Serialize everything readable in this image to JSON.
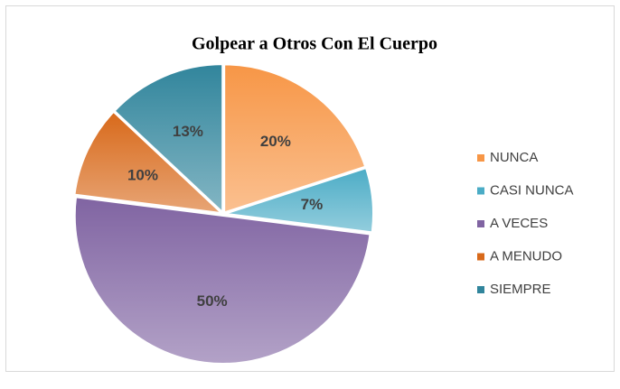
{
  "chart_data": {
    "type": "pie",
    "title": "Golpear a Otros Con El Cuerpo",
    "categories": [
      "NUNCA",
      "CASI NUNCA",
      "A VECES",
      "A MENUDO",
      "SIEMPRE"
    ],
    "values": [
      20,
      7,
      50,
      10,
      13
    ],
    "value_labels": [
      "20%",
      "7%",
      "50%",
      "10%",
      "13%"
    ],
    "colors": [
      "#f79646",
      "#4bacc6",
      "#8064a2",
      "#d8691a",
      "#31859c"
    ],
    "legend": "right"
  }
}
